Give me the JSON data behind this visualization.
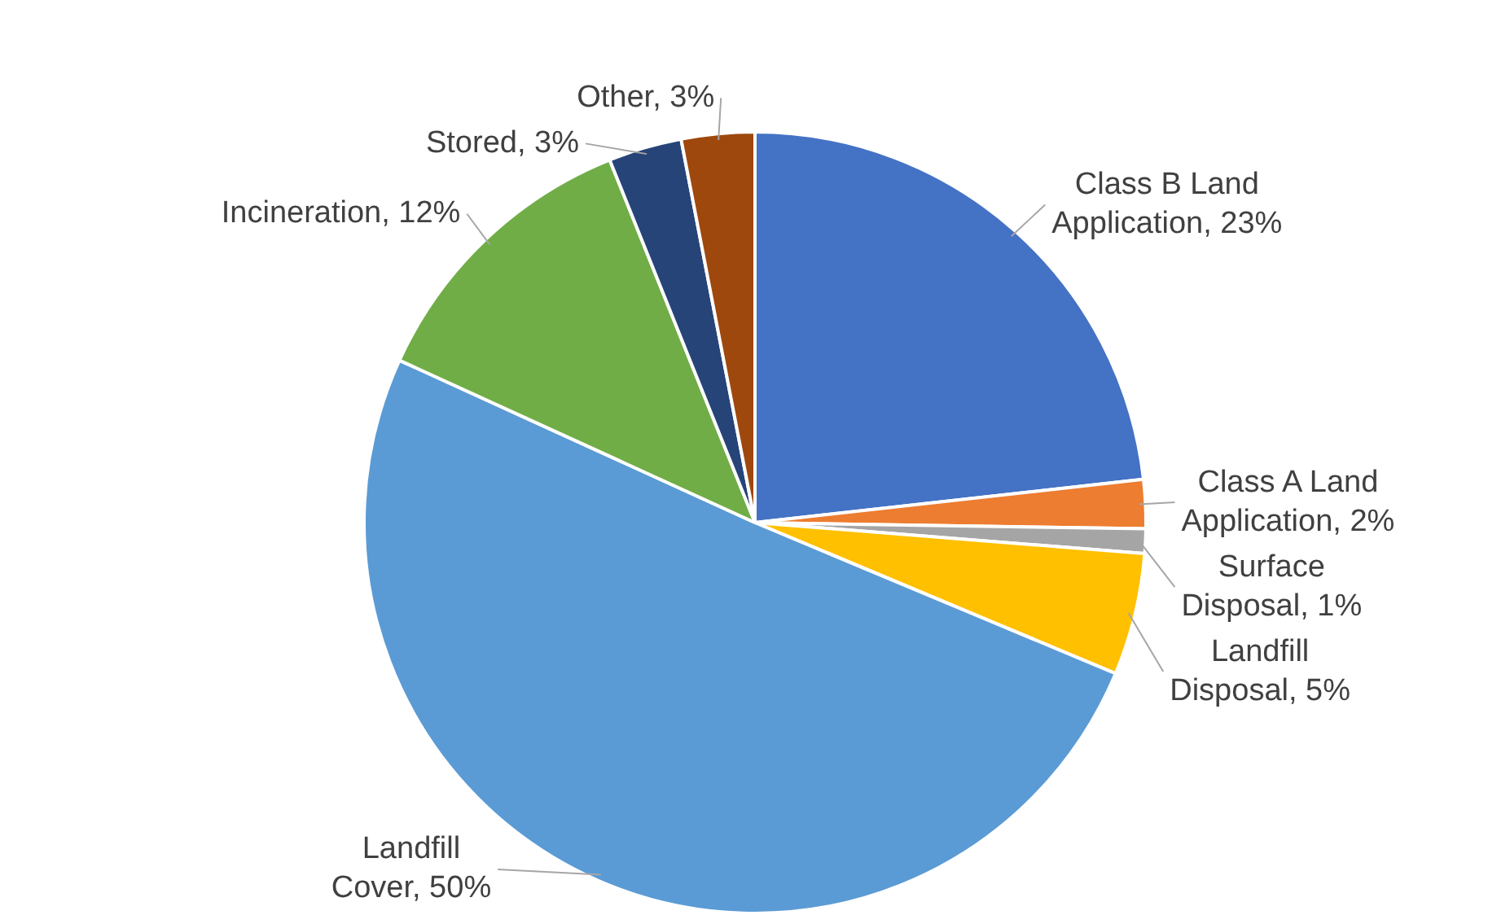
{
  "chart_data": {
    "type": "pie",
    "categories": [
      "Class B Land Application",
      "Class A Land Application",
      "Surface Disposal",
      "Landfill Disposal",
      "Landfill Cover",
      "Incineration",
      "Stored",
      "Other"
    ],
    "values": [
      23,
      2,
      1,
      5,
      50,
      12,
      3,
      3
    ],
    "value_labels": [
      "23%",
      "2%",
      "1%",
      "5%",
      "50%",
      "12%",
      "3%",
      "3%"
    ],
    "colors": [
      "#4472c4",
      "#ed7d31",
      "#a5a5a5",
      "#ffc000",
      "#5b9bd5",
      "#70ad47",
      "#264478",
      "#9e480e"
    ],
    "legend": false
  }
}
